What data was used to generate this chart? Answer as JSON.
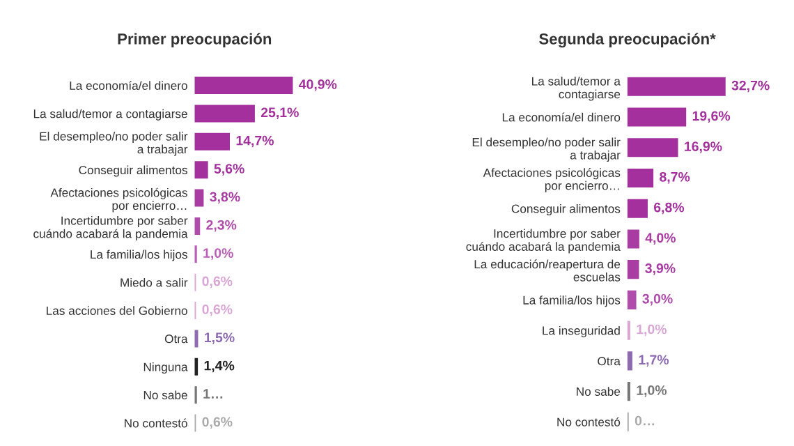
{
  "chart_data": [
    {
      "type": "bar",
      "orientation": "horizontal",
      "title": "Primer preocupación",
      "categories": [
        "La economía/el dinero",
        "La salud/temor a contagiarse",
        "El desempleo/no poder salir\na trabajar",
        "Conseguir alimentos",
        "Afectaciones psicológicas\npor encierro…",
        "Incertidumbre por saber\ncuándo acabará la pandemia",
        "La familia/los hijos",
        "Miedo a salir",
        "Las acciones del Gobierno",
        "Otra",
        "Ninguna",
        "No sabe",
        "No contestó"
      ],
      "values": [
        40.9,
        25.1,
        14.7,
        5.6,
        3.8,
        2.3,
        1.0,
        0.6,
        0.6,
        1.5,
        1.4,
        1.0,
        0.6
      ],
      "value_labels": [
        "40,9%",
        "25,1%",
        "14,7%",
        "5,6%",
        "3,8%",
        "2,3%",
        "1,0%",
        "0,6%",
        "0,6%",
        "1,5%",
        "1,4%",
        "1…",
        "0,6%"
      ],
      "colors": [
        "#a3309c",
        "#a3309c",
        "#a3309c",
        "#a3309c",
        "#a83ca2",
        "#b04cab",
        "#bb5fb6",
        "#d9a6d6",
        "#d9a6d6",
        "#8e6bb0",
        "#222222",
        "#777777",
        "#aaaaaa"
      ],
      "tick_labels": "y",
      "grid": false,
      "legend": false
    },
    {
      "type": "bar",
      "orientation": "horizontal",
      "title": "Segunda preocupación*",
      "categories": [
        "La salud/temor a\ncontagiarse",
        "La economía/el dinero",
        "El desempleo/no poder salir\na trabajar",
        "Afectaciones psicológicas\npor encierro…",
        "Conseguir alimentos",
        "Incertidumbre por saber\ncuándo acabará la pandemia",
        "La educación/reapertura de\nescuelas",
        "La familia/los hijos",
        "La inseguridad",
        "Otra",
        "No sabe",
        "No contestó"
      ],
      "values": [
        32.7,
        19.6,
        16.9,
        8.7,
        6.8,
        4.0,
        3.9,
        3.0,
        1.0,
        1.7,
        1.0,
        0.5
      ],
      "value_labels": [
        "32,7%",
        "19,6%",
        "16,9%",
        "8,7%",
        "6,8%",
        "4,0%",
        "3,9%",
        "3,0%",
        "1,0%",
        "1,7%",
        "1,0%",
        "0…"
      ],
      "colors": [
        "#a3309c",
        "#a3309c",
        "#a3309c",
        "#a3309c",
        "#a3309c",
        "#a83ca2",
        "#a83ca2",
        "#b04cab",
        "#d9a6d6",
        "#8e6bb0",
        "#777777",
        "#aaaaaa"
      ],
      "tick_labels": "y",
      "grid": false,
      "legend": false
    }
  ]
}
